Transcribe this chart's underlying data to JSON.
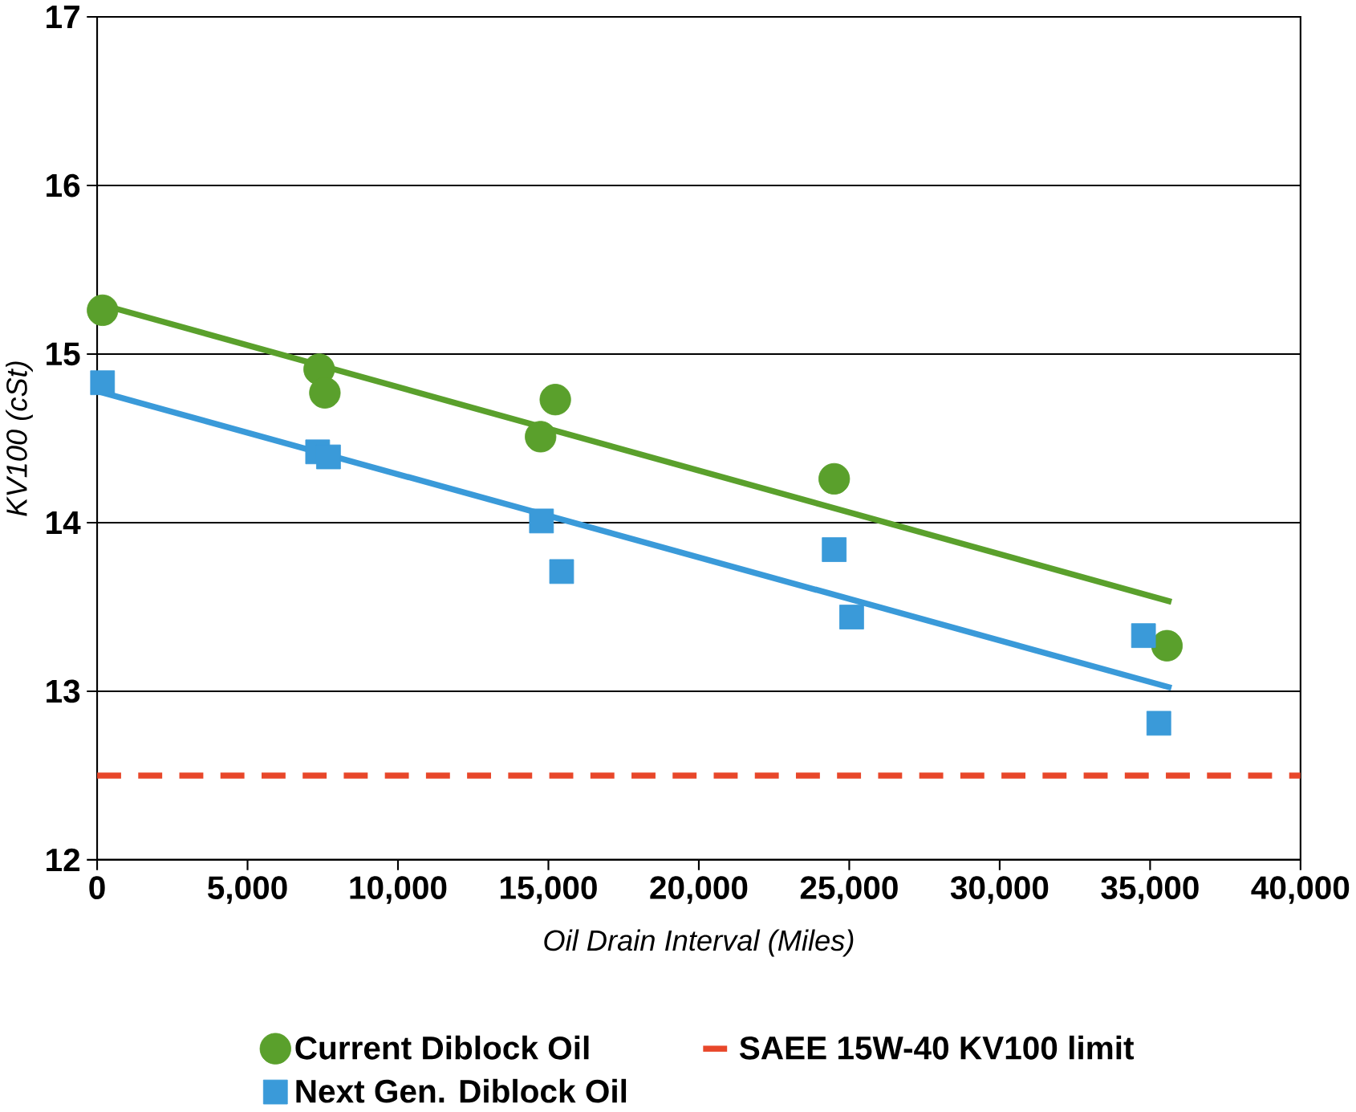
{
  "chart_data": {
    "type": "scatter",
    "xlabel": "Oil Drain Interval (Miles)",
    "ylabel": "KV100 (cSt)",
    "xlim": [
      0,
      40000
    ],
    "ylim": [
      12,
      17
    ],
    "xticks": [
      0,
      {
        "value": 5000,
        "label": "5,000"
      },
      {
        "value": 10000,
        "label": "10,000"
      },
      {
        "value": 15000,
        "label": "15,000"
      },
      {
        "value": 20000,
        "label": "20,000"
      },
      {
        "value": 25000,
        "label": "25,000"
      },
      {
        "value": 30000,
        "label": "30,000"
      },
      {
        "value": 35000,
        "label": "35,000"
      },
      {
        "value": 40000,
        "label": "40,000"
      }
    ],
    "yticks": [
      12,
      13,
      14,
      15,
      16,
      17
    ],
    "grid": "y",
    "legend": "bottom",
    "series": [
      {
        "name": "Current Diblock Oil",
        "color": "#5aa02c",
        "marker": "circle",
        "x": [
          180,
          7380,
          7570,
          15230,
          14740,
          24500,
          35560
        ],
        "values": [
          15.26,
          14.91,
          14.77,
          14.73,
          14.51,
          14.26,
          13.27
        ]
      },
      {
        "name": "Next Gen. Diblock Oil",
        "color": "#3a9ad9",
        "marker": "square",
        "x": [
          180,
          7330,
          7690,
          14770,
          15440,
          24500,
          25080,
          34780,
          35290
        ],
        "values": [
          14.83,
          14.42,
          14.39,
          14.01,
          13.71,
          13.84,
          13.44,
          13.33,
          12.81
        ]
      },
      {
        "type": "line",
        "color": "#5aa02c",
        "x": [
          0,
          35710
        ],
        "values": [
          15.3,
          13.53
        ]
      },
      {
        "type": "line",
        "color": "#3a9ad9",
        "x": [
          0,
          35710
        ],
        "values": [
          14.78,
          13.02
        ]
      }
    ],
    "ref_lines": [
      {
        "axis": "y",
        "value": 12.5,
        "label": "SAEE 15W-40 KV100 limit",
        "color": "#e8472a",
        "line_style": "dashed"
      }
    ]
  }
}
